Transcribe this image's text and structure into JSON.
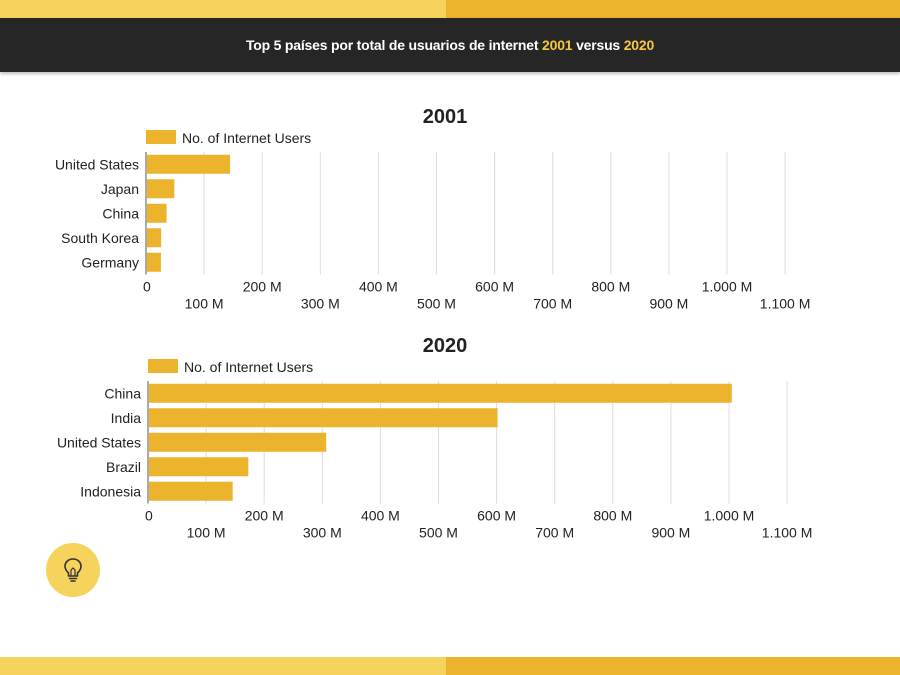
{
  "header": {
    "title_prefix": "Top 5 países por total de usuarios de internet ",
    "year_a": "2001",
    "middle": " versus ",
    "year_b": "2020"
  },
  "colors": {
    "bar": "#ecb32c",
    "header_bg": "#262626",
    "highlight": "#f5c842",
    "stripe_light": "#f5d35c",
    "stripe_dark": "#ecb32c",
    "grid": "#dddddd"
  },
  "tip_icon": "lightbulb-icon",
  "chart_data": [
    {
      "type": "bar",
      "orientation": "horizontal",
      "title": "2001",
      "legend": "No. of Internet Users",
      "legend_position": "top-left",
      "grid": true,
      "categories": [
        "United States",
        "Japan",
        "China",
        "South Korea",
        "Germany"
      ],
      "values": [
        143000000,
        47000000,
        33700000,
        24400000,
        24000000
      ],
      "xlim": [
        0,
        1100000000
      ],
      "tick_labels": [
        "0",
        "100 M",
        "200 M",
        "300 M",
        "400 M",
        "500 M",
        "600 M",
        "700 M",
        "800 M",
        "900 M",
        "1.000 M",
        "1.100 M"
      ]
    },
    {
      "type": "bar",
      "orientation": "horizontal",
      "title": "2020",
      "legend": "No. of Internet Users",
      "legend_position": "top-left",
      "grid": true,
      "categories": [
        "China",
        "India",
        "United States",
        "Brazil",
        "Indonesia"
      ],
      "values": [
        1003000000,
        600000000,
        305000000,
        171000000,
        144000000
      ],
      "xlim": [
        0,
        1100000000
      ],
      "tick_labels": [
        "0",
        "100 M",
        "200 M",
        "300 M",
        "400 M",
        "500 M",
        "600 M",
        "700 M",
        "800 M",
        "900 M",
        "1.000 M",
        "1.100 M"
      ]
    }
  ]
}
